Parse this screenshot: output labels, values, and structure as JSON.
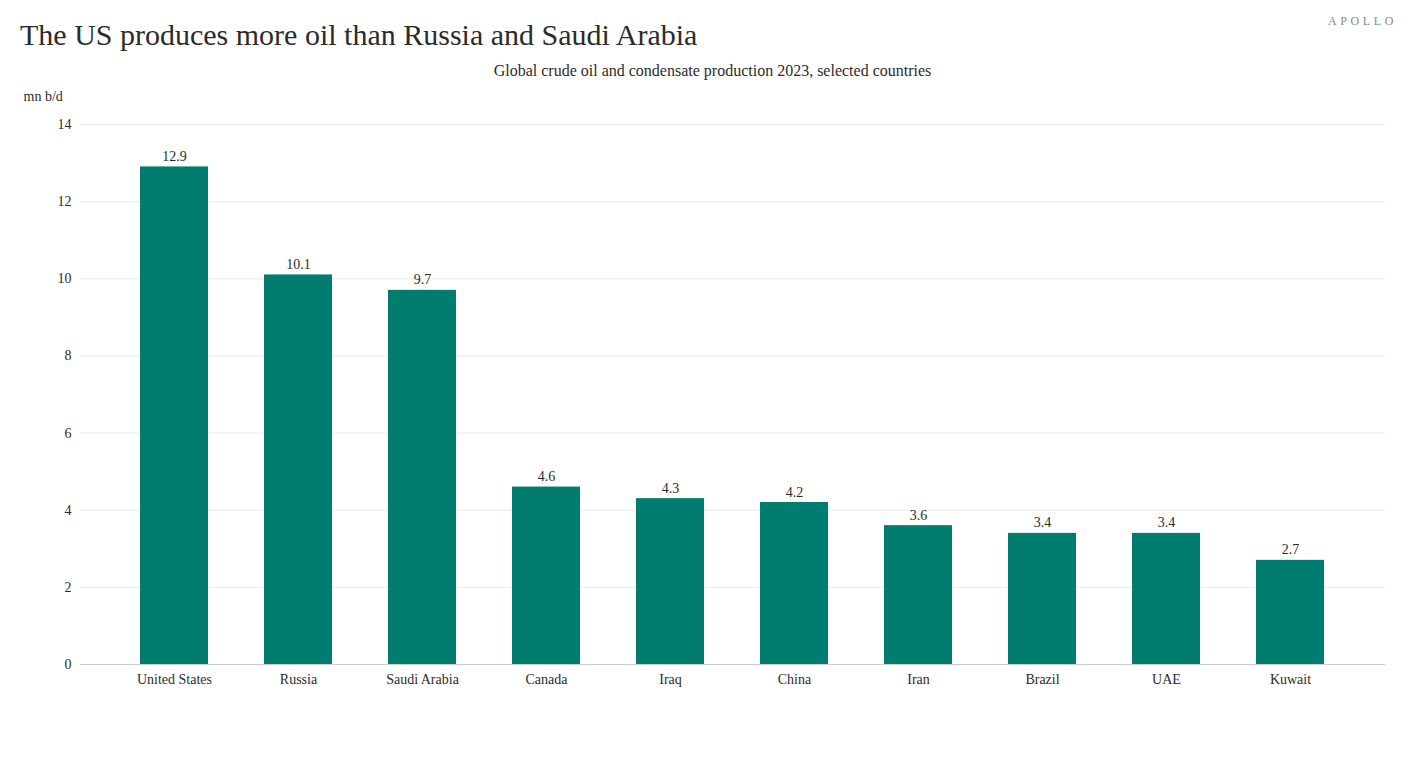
{
  "chart_data": {
    "type": "bar",
    "title": "The US produces more oil than Russia and Saudi Arabia",
    "subtitle": "Global crude oil and condensate production 2023, selected countries",
    "watermark": "APOLLO",
    "ylabel": "mn b/d",
    "categories": [
      "United States",
      "Russia",
      "Saudi Arabia",
      "Canada",
      "Iraq",
      "China",
      "Iran",
      "Brazil",
      "UAE",
      "Kuwait"
    ],
    "values": [
      12.9,
      10.1,
      9.7,
      4.6,
      4.3,
      4.2,
      3.6,
      3.4,
      3.4,
      2.7
    ],
    "color": "#007D6E",
    "ylim": [
      0,
      14
    ],
    "yticks": [
      0,
      2,
      4,
      6,
      8,
      10,
      12,
      14
    ],
    "grid": true,
    "data_labels": true
  }
}
